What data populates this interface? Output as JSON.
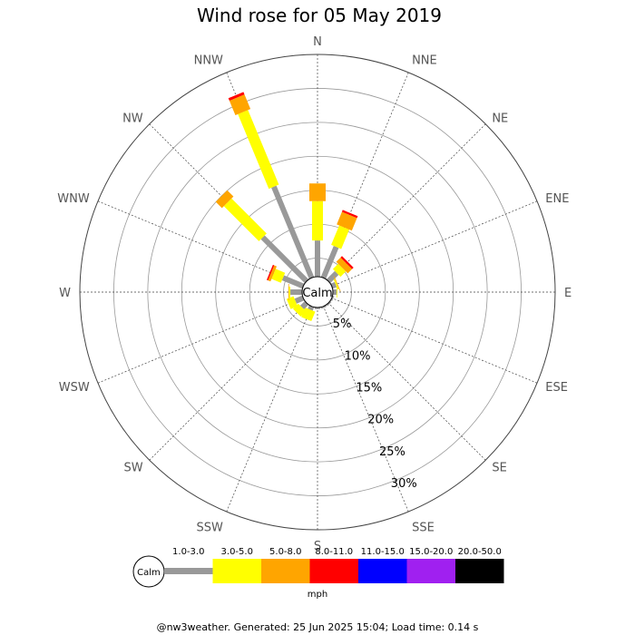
{
  "chart_data": {
    "type": "wind-rose",
    "title": "Wind rose for 05 May 2019",
    "unit": "mph",
    "calm_label": "Calm",
    "directions": [
      "N",
      "NNE",
      "NE",
      "ENE",
      "E",
      "ESE",
      "SE",
      "SSE",
      "S",
      "SSW",
      "SW",
      "WSW",
      "W",
      "WNW",
      "NW",
      "NNW"
    ],
    "rings": [
      {
        "value": 5,
        "label": "5%"
      },
      {
        "value": 10,
        "label": "10%"
      },
      {
        "value": 15,
        "label": "15%"
      },
      {
        "value": 20,
        "label": "20%"
      },
      {
        "value": 25,
        "label": "25%"
      },
      {
        "value": 30,
        "label": "30%"
      }
    ],
    "radius_max_percent": 35,
    "calm_radius_percent": 2.5,
    "speed_bins": [
      {
        "label": "1.0-3.0",
        "color": "#999999"
      },
      {
        "label": "3.0-5.0",
        "color": "#ffff00"
      },
      {
        "label": "5.0-8.0",
        "color": "#ffa500"
      },
      {
        "label": "8.0-11.0",
        "color": "#ff0000"
      },
      {
        "label": "11.0-15.0",
        "color": "#0000ff"
      },
      {
        "label": "15.0-20.0",
        "color": "#a020f0"
      },
      {
        "label": "20.0-50.0",
        "color": "#000000"
      }
    ],
    "cumulative_percent": {
      "N": [
        7.6,
        13.4,
        16.0,
        16.0
      ],
      "NNE": [
        7.2,
        10.3,
        12.3,
        12.6
      ],
      "NE": [
        4.0,
        5.1,
        6.0,
        6.3
      ],
      "ENE": [
        2.9,
        3.1,
        3.2,
        3.2
      ],
      "E": [
        2.8,
        2.9,
        2.9,
        2.9
      ],
      "ESE": [
        2.5,
        2.5,
        2.5,
        2.5
      ],
      "SE": [
        2.5,
        2.5,
        2.5,
        2.5
      ],
      "SSE": [
        2.5,
        2.5,
        2.5,
        2.5
      ],
      "S": [
        2.5,
        2.5,
        2.5,
        2.5
      ],
      "SSW": [
        2.8,
        4.3,
        4.3,
        4.3
      ],
      "SW": [
        3.2,
        4.3,
        4.3,
        4.3
      ],
      "WSW": [
        3.5,
        4.6,
        4.6,
        4.6
      ],
      "W": [
        4.0,
        4.2,
        4.3,
        4.3
      ],
      "WNW": [
        5.5,
        7.0,
        7.4,
        7.6
      ],
      "NW": [
        11.4,
        18.7,
        20.0,
        20.0
      ],
      "NNW": [
        16.8,
        28.7,
        31.0,
        31.4
      ]
    }
  },
  "legend": {
    "calm": "Calm",
    "unit": "mph"
  },
  "footer": "@nw3weather. Generated: 25 Jun 2025 15:04; Load time: 0.14 s"
}
